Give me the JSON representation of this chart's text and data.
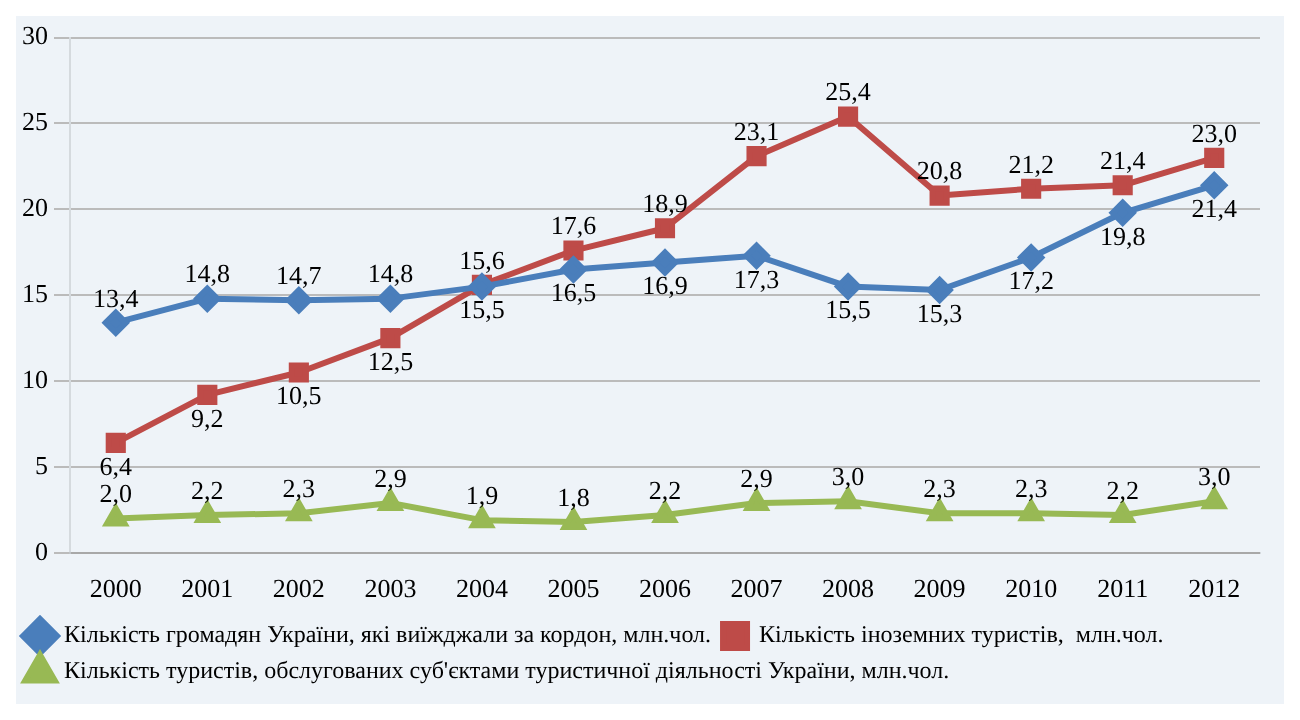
{
  "chart_data": {
    "type": "line",
    "categories": [
      "2000",
      "2001",
      "2002",
      "2003",
      "2004",
      "2005",
      "2006",
      "2007",
      "2008",
      "2009",
      "2010",
      "2011",
      "2012"
    ],
    "series": [
      {
        "name": "Кількість громадян України, які виїжджали за кордон, млн.чол.",
        "color": "#4a7ebb",
        "marker": "diamond",
        "values": [
          13.4,
          14.8,
          14.7,
          14.8,
          15.5,
          16.5,
          16.9,
          17.3,
          15.5,
          15.3,
          17.2,
          19.8,
          21.4
        ],
        "value_labels": [
          "13,4",
          "14,8",
          "14,7",
          "14,8",
          "15,5",
          "16,5",
          "16,9",
          "17,3",
          "15,5",
          "15,3",
          "17,2",
          "19,8",
          "21,4"
        ]
      },
      {
        "name": "Кількість іноземних туристів,  млн.чол.",
        "color": "#be4b48",
        "marker": "square",
        "values": [
          6.4,
          9.2,
          10.5,
          12.5,
          15.6,
          17.6,
          18.9,
          23.1,
          25.4,
          20.8,
          21.2,
          21.4,
          23.0
        ],
        "value_labels": [
          "6,4",
          "9,2",
          "10,5",
          "12,5",
          "15,6",
          "17,6",
          "18,9",
          "23,1",
          "25,4",
          "20,8",
          "21,2",
          "21,4",
          "23,0"
        ]
      },
      {
        "name": "Кількість туристів, обслугованих суб'єктами туристичної діяльності України, млн.чол.",
        "color": "#98b954",
        "marker": "triangle",
        "values": [
          2.0,
          2.2,
          2.3,
          2.9,
          1.9,
          1.8,
          2.2,
          2.9,
          3.0,
          2.3,
          2.3,
          2.2,
          3.0
        ],
        "value_labels": [
          "2,0",
          "2,2",
          "2,3",
          "2,9",
          "1,9",
          "1,8",
          "2,2",
          "2,9",
          "3,0",
          "2,3",
          "2,3",
          "2,2",
          "3,0"
        ]
      }
    ],
    "ylim": [
      0,
      30
    ],
    "yticks": [
      0,
      5,
      10,
      15,
      20,
      25,
      30
    ],
    "grid": "y",
    "legend": "bottom"
  }
}
